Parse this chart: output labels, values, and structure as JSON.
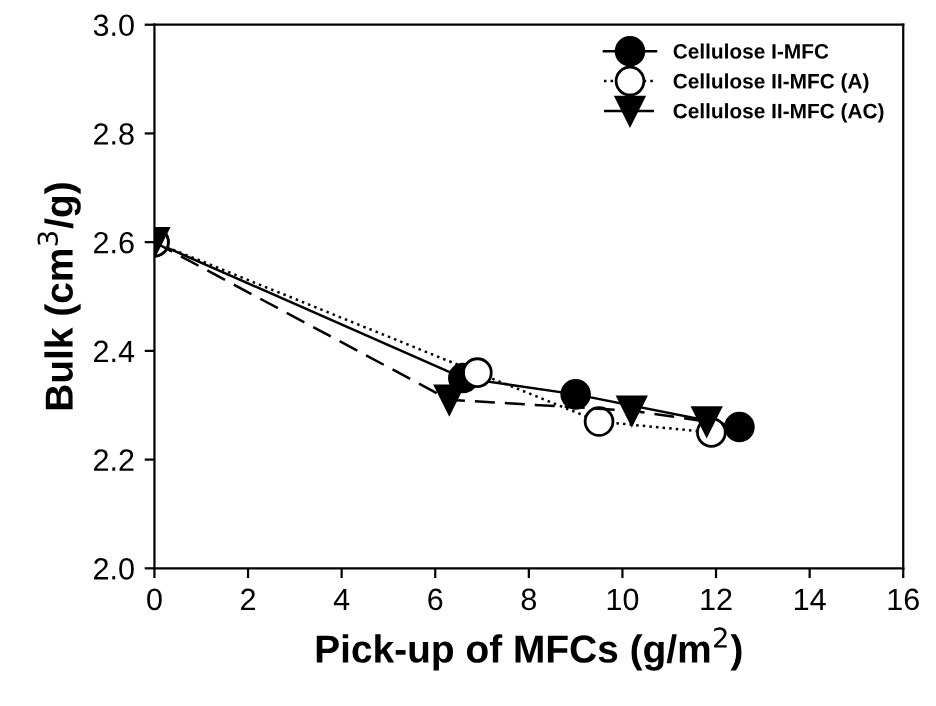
{
  "chart_data": {
    "type": "line",
    "xlabel": "Pick-up of MFCs (g/m$^{2}$)",
    "ylabel": "Bulk (cm$^{3}$/g)",
    "xlim": [
      0,
      16
    ],
    "xticks": [
      0,
      2,
      4,
      6,
      8,
      10,
      12,
      14,
      16
    ],
    "ylim": [
      2.0,
      3.0
    ],
    "yticks": [
      {
        "value": 2,
        "label": "2.0"
      },
      2.2,
      2.4,
      2.6,
      2.8,
      {
        "value": 3,
        "label": "3.0"
      }
    ],
    "grid": false,
    "legend": "top right",
    "series": [
      {
        "name": "Cellulose I-MFC",
        "color": "#000000",
        "marker": "circle",
        "line_style": "solid",
        "x": [
          0,
          6.6,
          9.0,
          12.5
        ],
        "values": [
          2.6,
          2.35,
          2.32,
          2.26
        ]
      },
      {
        "name": "Cellulose II-MFC (A)",
        "color": "#000000",
        "marker": "circle",
        "line_style": "dotted",
        "x": [
          0,
          6.9,
          9.5,
          11.9
        ],
        "values": [
          2.6,
          2.36,
          2.27,
          2.25
        ]
      },
      {
        "name": "Cellulose II-MFC (AC)",
        "color": "#000000",
        "marker": "triangle",
        "line_style": "dashed",
        "x": [
          0,
          6.3,
          10.2,
          11.8
        ],
        "values": [
          2.6,
          2.31,
          2.29,
          2.27
        ]
      }
    ]
  }
}
